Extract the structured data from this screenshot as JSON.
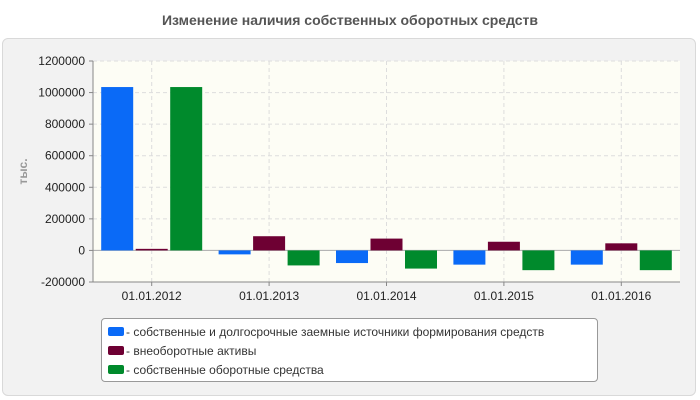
{
  "chart_data": {
    "type": "bar",
    "title": "Изменение наличия собственных оборотных средств",
    "ylabel": "тыс.",
    "xlabel": "",
    "ylim": [
      -200000,
      1200000
    ],
    "yticks": [
      1200000,
      1000000,
      800000,
      600000,
      400000,
      200000,
      0,
      -200000
    ],
    "grid": true,
    "legend_position": "bottom",
    "categories": [
      "01.01.2012",
      "01.01.2013",
      "01.01.2014",
      "01.01.2015",
      "01.01.2016"
    ],
    "series": [
      {
        "name": "собственные и долгосрочные заемные источники формирования средств",
        "color": "#0a6af7",
        "values": [
          1035000,
          -25000,
          -80000,
          -90000,
          -90000
        ]
      },
      {
        "name": "внеоборотные активы",
        "color": "#6e0033",
        "values": [
          10000,
          90000,
          75000,
          55000,
          45000
        ]
      },
      {
        "name": "собственные оборотные средства",
        "color": "#008a2c",
        "values": [
          1035000,
          -95000,
          -115000,
          -125000,
          -125000
        ]
      }
    ]
  }
}
